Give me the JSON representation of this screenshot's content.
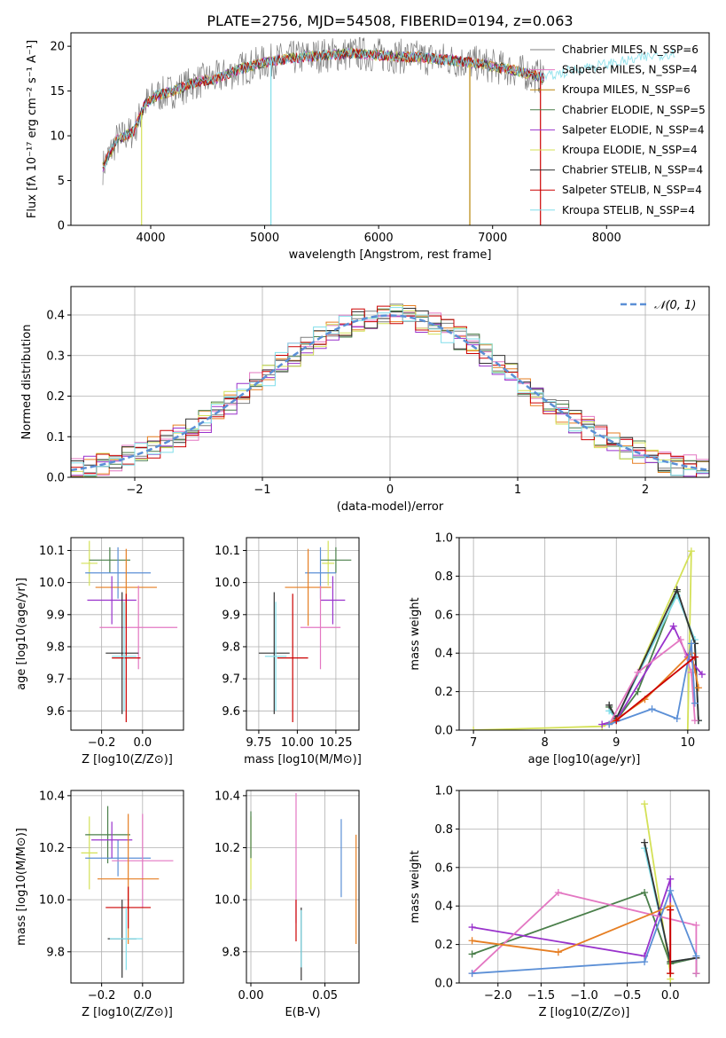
{
  "figure_title": "PLATE=2756, MJD=54508, FIBERID=0194, z=0.063",
  "chart_data": [
    {
      "id": "spectrum",
      "type": "line",
      "title": "PLATE=2756, MJD=54508, FIBERID=0194, z=0.063",
      "xlabel": "wavelength [Angstrom, rest frame]",
      "ylabel": "Flux [fλ 10⁻¹⁷ erg cm⁻² s⁻¹ A⁻¹]",
      "xlim": [
        3300,
        8900
      ],
      "ylim": [
        0,
        21.5
      ],
      "xticks": [
        4000,
        5000,
        6000,
        7000,
        8000
      ],
      "yticks": [
        0,
        5,
        10,
        15,
        20
      ],
      "observed_continuum": {
        "wavelength": [
          3580,
          3700,
          3850,
          3950,
          4050,
          4200,
          4400,
          4600,
          4800,
          5000,
          5200,
          5500,
          5800,
          6000,
          6300,
          6600,
          6900,
          7200,
          7450
        ],
        "flux": [
          6.5,
          9.5,
          10.5,
          13.5,
          14.5,
          15.0,
          16.0,
          16.5,
          17.5,
          18.2,
          18.6,
          19.0,
          19.2,
          19.0,
          18.8,
          18.5,
          18.0,
          17.3,
          16.5
        ]
      },
      "model_extension": {
        "wavelength": [
          7450,
          7600,
          7800,
          8000,
          8200,
          8400,
          8600
        ],
        "flux": [
          16.5,
          17.0,
          17.6,
          18.0,
          18.4,
          18.9,
          19.3
        ]
      },
      "legend": [
        {
          "name": "Chabrier MILES, N_SSP=6",
          "color": "#7f7f7f"
        },
        {
          "name": "Salpeter MILES, N_SSP=4",
          "color": "#e377c2"
        },
        {
          "name": "Kroupa MILES, N_SSP=6",
          "color": "#b8860b"
        },
        {
          "name": "Chabrier ELODIE, N_SSP=5",
          "color": "#4a7f4a"
        },
        {
          "name": "Salpeter ELODIE, N_SSP=4",
          "color": "#9932cc"
        },
        {
          "name": "Kroupa ELODIE, N_SSP=4",
          "color": "#d4e157"
        },
        {
          "name": "Chabrier STELIB, N_SSP=4",
          "color": "#333333"
        },
        {
          "name": "Salpeter STELIB, N_SSP=4",
          "color": "#cc0000"
        },
        {
          "name": "Kroupa STELIB, N_SSP=4",
          "color": "#80deea"
        }
      ],
      "legend_placement": "right"
    },
    {
      "id": "residuals",
      "type": "line",
      "xlabel": "(data-model)/error",
      "ylabel": "Normed distribution",
      "xlim": [
        -2.5,
        2.5
      ],
      "ylim": [
        0,
        0.47
      ],
      "xticks": [
        -2,
        -1,
        0,
        1,
        2
      ],
      "yticks": [
        0.0,
        0.1,
        0.2,
        0.3,
        0.4
      ],
      "series": [
        {
          "name": "𝒩(0, 1)",
          "color": "#5b8fd6",
          "mu": 0,
          "sigma": 1
        }
      ],
      "histogram_colors": [
        "#7f7f7f",
        "#e377c2",
        "#e67e22",
        "#4a7f4a",
        "#9932cc",
        "#d4e157",
        "#333333",
        "#cc0000",
        "#80deea"
      ],
      "legend_placement": "top-right",
      "grid": true
    },
    {
      "id": "age_vs_Z",
      "type": "scatter",
      "xlabel": "Z [log10(Z/Z⊙)]",
      "ylabel": "age  [log10(age/yr)]",
      "xlim": [
        -0.35,
        0.2
      ],
      "ylim": [
        9.54,
        10.14
      ],
      "xticks": [
        -0.2,
        0.0
      ],
      "yticks": [
        9.6,
        9.7,
        9.8,
        9.9,
        10.0,
        10.1
      ],
      "points": [
        {
          "color": "#d4e157",
          "x": -0.26,
          "y": 10.06,
          "xerr": 0.04,
          "yerr": 0.07
        },
        {
          "color": "#4a7f4a",
          "x": -0.16,
          "y": 10.07,
          "xerr": 0.1,
          "yerr": 0.04
        },
        {
          "color": "#5b8fd6",
          "x": -0.12,
          "y": 10.03,
          "xerr": 0.16,
          "yerr": 0.08
        },
        {
          "color": "#e67e22",
          "x": -0.08,
          "y": 9.985,
          "xerr": 0.15,
          "yerr": 0.12
        },
        {
          "color": "#9932cc",
          "x": -0.15,
          "y": 9.945,
          "xerr": 0.12,
          "yerr": 0.075
        },
        {
          "color": "#e377c2",
          "x": -0.02,
          "y": 9.86,
          "xerr": 0.19,
          "yerr": 0.13
        },
        {
          "color": "#333333",
          "x": -0.1,
          "y": 9.78,
          "xerr": 0.08,
          "yerr": 0.19
        },
        {
          "color": "#cc0000",
          "x": -0.08,
          "y": 9.765,
          "xerr": 0.07,
          "yerr": 0.2
        },
        {
          "color": "#80deea",
          "x": -0.09,
          "y": 9.77,
          "xerr": 0.06,
          "yerr": 0.17
        }
      ],
      "grid": true
    },
    {
      "id": "age_vs_mass",
      "type": "scatter",
      "xlabel": "mass [log10(M/M⊙)]",
      "ylabel": "",
      "xlim": [
        9.67,
        10.4
      ],
      "ylim": [
        9.54,
        10.14
      ],
      "xticks": [
        9.75,
        10.0,
        10.25
      ],
      "yticks": [
        9.6,
        9.7,
        9.8,
        9.9,
        10.0,
        10.1
      ],
      "points": [
        {
          "color": "#d4e157",
          "x": 10.2,
          "y": 10.06,
          "xerr": 0.04,
          "yerr": 0.07
        },
        {
          "color": "#4a7f4a",
          "x": 10.25,
          "y": 10.07,
          "xerr": 0.1,
          "yerr": 0.04
        },
        {
          "color": "#5b8fd6",
          "x": 10.15,
          "y": 10.03,
          "xerr": 0.1,
          "yerr": 0.08
        },
        {
          "color": "#e67e22",
          "x": 10.07,
          "y": 9.985,
          "xerr": 0.15,
          "yerr": 0.12
        },
        {
          "color": "#9932cc",
          "x": 10.23,
          "y": 9.945,
          "xerr": 0.08,
          "yerr": 0.075
        },
        {
          "color": "#e377c2",
          "x": 10.15,
          "y": 9.86,
          "xerr": 0.13,
          "yerr": 0.13
        },
        {
          "color": "#333333",
          "x": 9.85,
          "y": 9.78,
          "xerr": 0.1,
          "yerr": 0.19
        },
        {
          "color": "#cc0000",
          "x": 9.97,
          "y": 9.765,
          "xerr": 0.1,
          "yerr": 0.2
        },
        {
          "color": "#80deea",
          "x": 9.86,
          "y": 9.77,
          "xerr": 0.07,
          "yerr": 0.17
        }
      ],
      "grid": true
    },
    {
      "id": "massweight_vs_age",
      "type": "line",
      "xlabel": "age  [log10(age/yr)]",
      "ylabel": "mass weight",
      "xlim": [
        6.8,
        10.3
      ],
      "ylim": [
        0,
        1.0
      ],
      "xticks": [
        7,
        8,
        9,
        10
      ],
      "yticks": [
        0.0,
        0.2,
        0.4,
        0.6,
        0.8,
        1.0
      ],
      "series": [
        {
          "name": "Kroupa ELODIE",
          "color": "#d4e157",
          "x": [
            7.0,
            8.8,
            9.0,
            10.05,
            10.0
          ],
          "y": [
            0.0,
            0.02,
            0.05,
            0.93,
            0.0
          ]
        },
        {
          "name": "Chabrier MILES",
          "color": "#4a7f4a",
          "x": [
            8.9,
            9.0,
            9.3,
            9.85,
            10.1,
            10.15
          ],
          "y": [
            0.12,
            0.05,
            0.2,
            0.72,
            0.45,
            0.05
          ]
        },
        {
          "name": "Kroupa STELIB",
          "color": "#80deea",
          "x": [
            8.9,
            9.0,
            9.85,
            10.1,
            10.15
          ],
          "y": [
            0.1,
            0.06,
            0.7,
            0.47,
            0.05
          ]
        },
        {
          "name": "Chabrier STELIB",
          "color": "#333333",
          "x": [
            8.9,
            9.0,
            9.85,
            10.1,
            10.15
          ],
          "y": [
            0.13,
            0.06,
            0.73,
            0.45,
            0.05
          ]
        },
        {
          "name": "Salpeter ELODIE",
          "color": "#9932cc",
          "x": [
            8.8,
            9.0,
            9.8,
            10.0,
            10.2
          ],
          "y": [
            0.03,
            0.05,
            0.54,
            0.38,
            0.29
          ]
        },
        {
          "name": "Salpeter MILES",
          "color": "#e377c2",
          "x": [
            8.9,
            9.3,
            9.9,
            10.05,
            10.1
          ],
          "y": [
            0.03,
            0.3,
            0.47,
            0.3,
            0.05
          ]
        },
        {
          "name": "Kroupa MILES",
          "color": "#e67e22",
          "x": [
            8.9,
            9.4,
            10.05,
            10.15
          ],
          "y": [
            0.03,
            0.16,
            0.4,
            0.22
          ]
        },
        {
          "name": "Chabrier ELODIE",
          "color": "#5b8fd6",
          "x": [
            8.9,
            9.5,
            9.85,
            10.05,
            10.1
          ],
          "y": [
            0.03,
            0.11,
            0.06,
            0.45,
            0.14
          ]
        },
        {
          "name": "Salpeter STELIB",
          "color": "#cc0000",
          "x": [
            9.0,
            10.1
          ],
          "y": [
            0.05,
            0.38
          ]
        }
      ],
      "grid": true
    },
    {
      "id": "mass_vs_Z",
      "type": "scatter",
      "xlabel": "Z [log10(Z/Z⊙)]",
      "ylabel": "mass [log10(M/M⊙)]",
      "xlim": [
        -0.35,
        0.2
      ],
      "ylim": [
        9.68,
        10.42
      ],
      "xticks": [
        -0.2,
        0.0
      ],
      "yticks": [
        9.8,
        10.0,
        10.2,
        10.4
      ],
      "points": [
        {
          "color": "#d4e157",
          "x": -0.26,
          "y": 10.18,
          "xerr": 0.04,
          "yerr": 0.14
        },
        {
          "color": "#4a7f4a",
          "x": -0.17,
          "y": 10.25,
          "xerr": 0.11,
          "yerr": 0.11
        },
        {
          "color": "#5b8fd6",
          "x": -0.12,
          "y": 10.16,
          "xerr": 0.16,
          "yerr": 0.07
        },
        {
          "color": "#9932cc",
          "x": -0.15,
          "y": 10.23,
          "xerr": 0.1,
          "yerr": 0.07
        },
        {
          "color": "#e377c2",
          "x": 0.0,
          "y": 10.15,
          "xerr": 0.15,
          "yerr": 0.18
        },
        {
          "color": "#e67e22",
          "x": -0.07,
          "y": 10.08,
          "xerr": 0.15,
          "yerr": 0.25
        },
        {
          "color": "#cc0000",
          "x": -0.07,
          "y": 9.97,
          "xerr": 0.11,
          "yerr": 0.08
        },
        {
          "color": "#333333",
          "x": -0.1,
          "y": 9.85,
          "xerr": 0.07,
          "yerr": 0.15
        },
        {
          "color": "#80deea",
          "x": -0.08,
          "y": 9.85,
          "xerr": 0.08,
          "yerr": 0.12
        }
      ],
      "grid": true
    },
    {
      "id": "mass_vs_EBV",
      "type": "scatter",
      "xlabel": "E(B-V)",
      "ylabel": "",
      "xlim": [
        -0.003,
        0.073
      ],
      "ylim": [
        9.68,
        10.42
      ],
      "xticks": [
        0.0,
        0.05
      ],
      "yticks": [
        9.8,
        10.0,
        10.2,
        10.4
      ],
      "points": [
        {
          "color": "#d4e157",
          "x": 0.0,
          "y": 10.18,
          "yerr": 0.14
        },
        {
          "color": "#4a7f4a",
          "x": 0.0,
          "y": 10.25,
          "yerr": 0.09
        },
        {
          "color": "#e377c2",
          "x": 0.0305,
          "y": 10.16,
          "yerr": 0.25
        },
        {
          "color": "#cc0000",
          "x": 0.0305,
          "y": 9.92,
          "yerr": 0.08
        },
        {
          "color": "#5b8fd6",
          "x": 0.061,
          "y": 10.16,
          "yerr": 0.15
        },
        {
          "color": "#e67e22",
          "x": 0.071,
          "y": 10.04,
          "yerr": 0.21
        },
        {
          "color": "#333333",
          "x": 0.034,
          "y": 9.83,
          "yerr": 0.14
        },
        {
          "color": "#80deea",
          "x": 0.034,
          "y": 9.85,
          "yerr": 0.11
        }
      ],
      "grid": true
    },
    {
      "id": "massweight_vs_Z",
      "type": "line",
      "xlabel": "Z [log10(Z/Z⊙)]",
      "ylabel": "mass weight",
      "xlim": [
        -2.45,
        0.45
      ],
      "ylim": [
        0,
        1.0
      ],
      "xticks": [
        -2.0,
        -1.5,
        -1.0,
        -0.5,
        0.0
      ],
      "yticks": [
        0.0,
        0.2,
        0.4,
        0.6,
        0.8,
        1.0
      ],
      "series": [
        {
          "name": "Kroupa ELODIE",
          "color": "#d4e157",
          "x": [
            -0.3,
            0.0,
            0.0
          ],
          "y": [
            0.93,
            0.05,
            0.02
          ]
        },
        {
          "name": "Chabrier MILES",
          "color": "#4a7f4a",
          "x": [
            -2.3,
            -0.3,
            0.0,
            0.3
          ],
          "y": [
            0.15,
            0.47,
            0.1,
            0.13
          ]
        },
        {
          "name": "Kroupa STELIB",
          "color": "#80deea",
          "x": [
            -0.3,
            0.0,
            0.3,
            0.3
          ],
          "y": [
            0.7,
            0.11,
            0.13,
            0.05
          ]
        },
        {
          "name": "Chabrier STELIB",
          "color": "#333333",
          "x": [
            -0.3,
            0.0,
            0.3,
            0.3
          ],
          "y": [
            0.73,
            0.11,
            0.13,
            0.05
          ]
        },
        {
          "name": "Salpeter ELODIE",
          "color": "#9932cc",
          "x": [
            -2.3,
            -0.3,
            0.0,
            0.0
          ],
          "y": [
            0.29,
            0.14,
            0.54,
            0.05
          ]
        },
        {
          "name": "Salpeter MILES",
          "color": "#e377c2",
          "x": [
            -2.3,
            -1.3,
            0.3,
            0.3
          ],
          "y": [
            0.05,
            0.47,
            0.3,
            0.05
          ]
        },
        {
          "name": "Kroupa MILES",
          "color": "#e67e22",
          "x": [
            -2.3,
            -1.3,
            0.0,
            0.0
          ],
          "y": [
            0.22,
            0.16,
            0.4,
            0.05
          ]
        },
        {
          "name": "Chabrier ELODIE",
          "color": "#5b8fd6",
          "x": [
            -2.3,
            -0.3,
            0.0,
            0.3
          ],
          "y": [
            0.05,
            0.11,
            0.48,
            0.14
          ]
        },
        {
          "name": "Salpeter STELIB",
          "color": "#cc0000",
          "x": [
            0.0,
            0.0
          ],
          "y": [
            0.05,
            0.38
          ]
        }
      ],
      "grid": true
    }
  ]
}
